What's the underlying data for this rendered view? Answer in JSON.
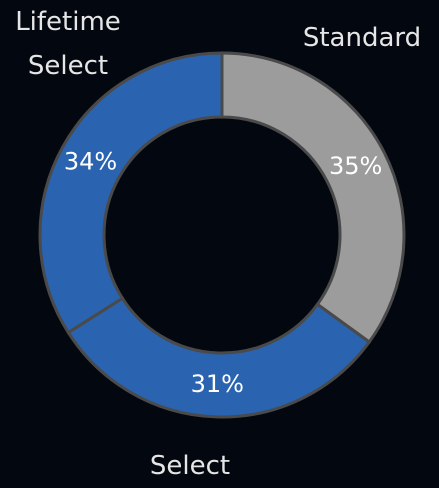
{
  "chart_data": {
    "type": "doughnut",
    "categories": [
      "Standard",
      "Select",
      "Lifetime Select"
    ],
    "values": [
      35,
      31,
      34
    ],
    "value_labels": [
      "35%",
      "31%",
      "34%"
    ],
    "colors": [
      "#9c9c9c",
      "#2a63b0",
      "#2a63b0"
    ]
  }
}
